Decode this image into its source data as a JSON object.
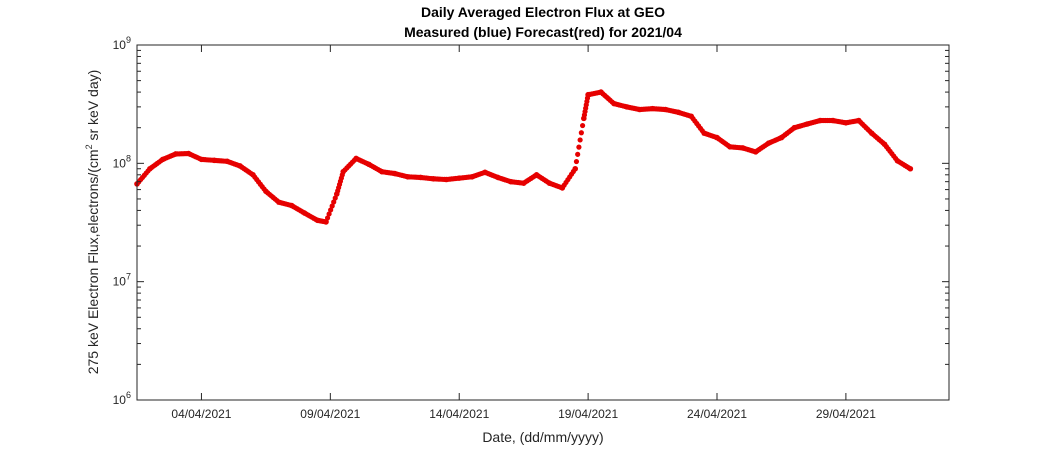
{
  "chart_data": {
    "type": "scatter",
    "title": "Daily Averaged Electron Flux at GEO",
    "subtitle": "Measured (blue) Forecast(red) for 2021/04",
    "xlabel": "Date, (dd/mm/yyyy)",
    "ylabel": {
      "before": "275 keV Electron Flux,electrons/(cm",
      "sup": "2",
      "after": " sr keV day)"
    },
    "yscale": "log",
    "ylim": [
      1000000,
      1000000000
    ],
    "xlim": [
      "2021-04-01T12:00",
      "2021-05-03T00:00"
    ],
    "xticks": [
      {
        "value": "2021-04-04",
        "label": "04/04/2021"
      },
      {
        "value": "2021-04-09",
        "label": "09/04/2021"
      },
      {
        "value": "2021-04-14",
        "label": "14/04/2021"
      },
      {
        "value": "2021-04-19",
        "label": "19/04/2021"
      },
      {
        "value": "2021-04-24",
        "label": "24/04/2021"
      },
      {
        "value": "2021-04-29",
        "label": "29/04/2021"
      }
    ],
    "yticks": [
      {
        "value": 1000000,
        "base": "10",
        "exp": "6"
      },
      {
        "value": 10000000,
        "base": "10",
        "exp": "7"
      },
      {
        "value": 100000000,
        "base": "10",
        "exp": "8"
      },
      {
        "value": 1000000000,
        "base": "10",
        "exp": "9"
      }
    ],
    "grid": false,
    "series": [
      {
        "color": "#e60000",
        "x": [
          "2021-04-01T12:00",
          "2021-04-02T00:00",
          "2021-04-02T12:00",
          "2021-04-03T00:00",
          "2021-04-03T12:00",
          "2021-04-04T00:00",
          "2021-04-04T12:00",
          "2021-04-05T00:00",
          "2021-04-05T12:00",
          "2021-04-06T00:00",
          "2021-04-06T12:00",
          "2021-04-07T00:00",
          "2021-04-07T12:00",
          "2021-04-08T00:00",
          "2021-04-08T12:00",
          "2021-04-08T20:00",
          "2021-04-09T06:00",
          "2021-04-09T12:00",
          "2021-04-10T00:00",
          "2021-04-10T12:00",
          "2021-04-11T00:00",
          "2021-04-11T12:00",
          "2021-04-12T00:00",
          "2021-04-12T12:00",
          "2021-04-13T00:00",
          "2021-04-13T12:00",
          "2021-04-14T00:00",
          "2021-04-14T12:00",
          "2021-04-15T00:00",
          "2021-04-15T12:00",
          "2021-04-16T00:00",
          "2021-04-16T12:00",
          "2021-04-17T00:00",
          "2021-04-17T12:00",
          "2021-04-18T00:00",
          "2021-04-18T12:00",
          "2021-04-18T20:00",
          "2021-04-19T00:00",
          "2021-04-19T12:00",
          "2021-04-20T00:00",
          "2021-04-20T12:00",
          "2021-04-21T00:00",
          "2021-04-21T12:00",
          "2021-04-22T00:00",
          "2021-04-22T12:00",
          "2021-04-23T00:00",
          "2021-04-23T12:00",
          "2021-04-24T00:00",
          "2021-04-24T12:00",
          "2021-04-25T00:00",
          "2021-04-25T12:00",
          "2021-04-26T00:00",
          "2021-04-26T12:00",
          "2021-04-27T00:00",
          "2021-04-27T12:00",
          "2021-04-28T00:00",
          "2021-04-28T12:00",
          "2021-04-29T00:00",
          "2021-04-29T12:00",
          "2021-04-30T00:00",
          "2021-04-30T12:00",
          "2021-05-01T00:00",
          "2021-05-01T12:00"
        ],
        "y": [
          67000000,
          90000000,
          108000000,
          120000000,
          121000000,
          108000000,
          106000000,
          104000000,
          95000000,
          80000000,
          58000000,
          47000000,
          44000000,
          38000000,
          33000000,
          32000000,
          55000000,
          85000000,
          110000000,
          98000000,
          85000000,
          82000000,
          77000000,
          76000000,
          74000000,
          73000000,
          75000000,
          77000000,
          84000000,
          76000000,
          70000000,
          68000000,
          80000000,
          68000000,
          62000000,
          90000000,
          240000000,
          380000000,
          400000000,
          320000000,
          300000000,
          285000000,
          290000000,
          285000000,
          270000000,
          250000000,
          180000000,
          165000000,
          138000000,
          135000000,
          125000000,
          148000000,
          165000000,
          200000000,
          215000000,
          230000000,
          230000000,
          220000000,
          230000000,
          180000000,
          145000000,
          105000000,
          90000000
        ]
      }
    ]
  }
}
